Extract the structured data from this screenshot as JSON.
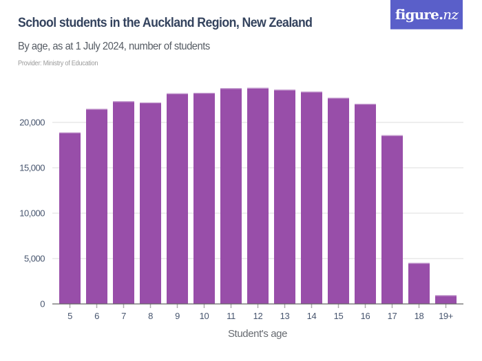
{
  "header": {
    "title": "School students in the Auckland Region, New Zealand",
    "subtitle": "By age, as at 1 July 2024, number of students",
    "provider": "Provider: Ministry of Education",
    "logo_text": "figure.",
    "logo_text_italic": "nz"
  },
  "colors": {
    "bar": "#984ea9",
    "bar_top": "#c9a5d3",
    "grid": "#dddddd",
    "axis": "#666666",
    "tick": "#aaaaaa",
    "logo_bg": "#5a5fc9",
    "title": "#34435e"
  },
  "chart_data": {
    "type": "bar",
    "title": "School students in the Auckland Region, New Zealand",
    "subtitle": "By age, as at 1 July 2024, number of students",
    "xlabel": "Student's age",
    "ylabel": "",
    "categories": [
      "5",
      "6",
      "7",
      "8",
      "9",
      "10",
      "11",
      "12",
      "13",
      "14",
      "15",
      "16",
      "17",
      "18",
      "19+"
    ],
    "values": [
      18900,
      21490,
      22330,
      22200,
      23200,
      23260,
      23770,
      23810,
      23610,
      23390,
      22710,
      22050,
      18590,
      4520,
      960
    ],
    "yticks": [
      0,
      5000,
      10000,
      15000,
      20000
    ],
    "ytick_labels": [
      "0",
      "5,000",
      "10,000",
      "15,000",
      "20,000"
    ],
    "ylim": [
      0,
      25000
    ],
    "grid": true,
    "legend": null
  }
}
